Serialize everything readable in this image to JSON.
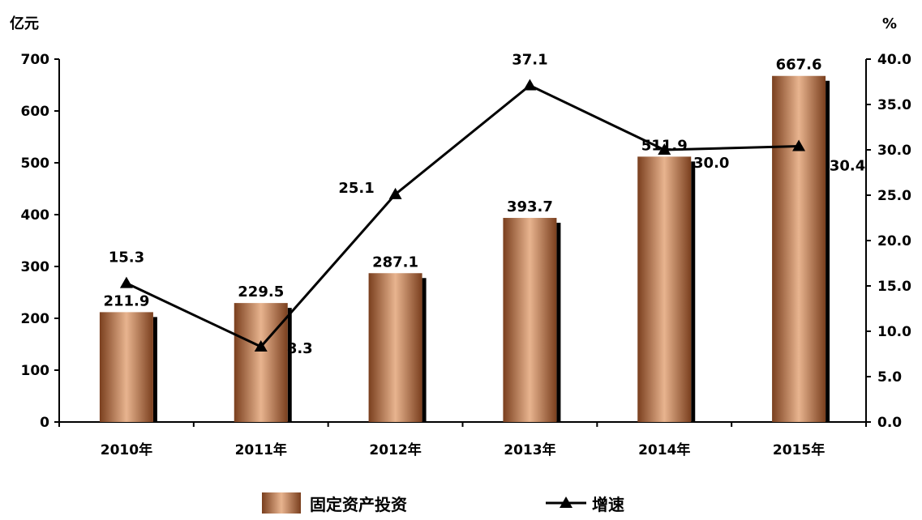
{
  "chart_data": {
    "type": "bar+line",
    "categories": [
      "2010年",
      "2011年",
      "2012年",
      "2013年",
      "2014年",
      "2015年"
    ],
    "series": [
      {
        "name": "固定资产投资",
        "kind": "bar",
        "axis": "left",
        "values": [
          211.9,
          229.5,
          287.1,
          393.7,
          511.9,
          667.6
        ],
        "labels": [
          "211.9",
          "229.5",
          "287.1",
          "393.7",
          "511.9",
          "667.6"
        ]
      },
      {
        "name": "增速",
        "kind": "line",
        "axis": "right",
        "marker": "triangle",
        "values": [
          15.3,
          8.3,
          25.1,
          37.1,
          30.0,
          30.4
        ],
        "labels": [
          "15.3",
          "8.3",
          "25.1",
          "37.1",
          "30.0",
          "30.4"
        ]
      }
    ],
    "left_axis": {
      "unit": "亿元",
      "ylim": [
        0,
        700
      ],
      "ticks": [
        "0",
        "100",
        "200",
        "300",
        "400",
        "500",
        "600",
        "700"
      ]
    },
    "right_axis": {
      "unit": "%",
      "ylim": [
        0,
        40
      ],
      "ticks": [
        "0.0",
        "5.0",
        "10.0",
        "15.0",
        "20.0",
        "25.0",
        "30.0",
        "35.0",
        "40.0"
      ]
    },
    "grid": false,
    "legend_position": "bottom-center",
    "colors": {
      "bar_dark": "#7a3f1e",
      "bar_light": "#e8b48f",
      "bar_shadow": "#000000",
      "line": "#000000"
    }
  }
}
